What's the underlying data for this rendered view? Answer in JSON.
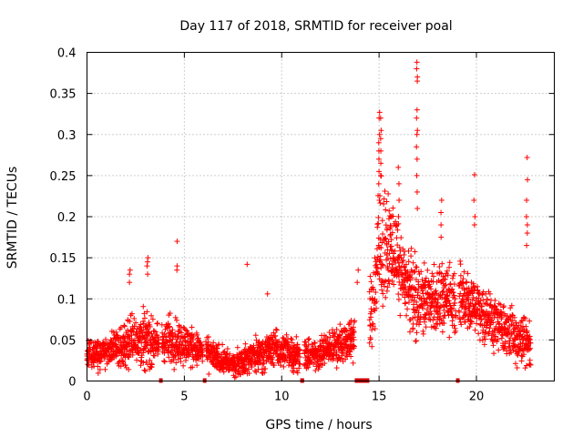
{
  "chart_data": {
    "type": "scatter",
    "title": "Day 117 of 2018, SRMTID for receiver poal",
    "xlabel": "GPS time / hours",
    "ylabel": "SRMTID / TECUs",
    "xlim": [
      0,
      24
    ],
    "ylim": [
      0,
      0.4
    ],
    "xticks": [
      0,
      5,
      10,
      15,
      20
    ],
    "xtick_labels": [
      "0",
      "5",
      "10",
      "15",
      "20"
    ],
    "yticks": [
      0,
      0.05,
      0.1,
      0.15,
      0.2,
      0.25,
      0.3,
      0.35,
      0.4
    ],
    "ytick_labels": [
      "0",
      "0.05",
      "0.1",
      "0.15",
      "0.2",
      "0.25",
      "0.3",
      "0.35",
      "0.4"
    ],
    "grid": true,
    "marker": "+",
    "color": "#ff0000",
    "gap_color": "#cc0000",
    "data_gaps": [
      [
        3.7,
        3.85
      ],
      [
        5.95,
        6.1
      ],
      [
        10.95,
        11.15
      ],
      [
        13.75,
        14.5
      ],
      [
        18.95,
        19.1
      ]
    ],
    "activity_profile": [
      {
        "t": 0.0,
        "center": 0.03,
        "spread": 0.025
      },
      {
        "t": 1.0,
        "center": 0.035,
        "spread": 0.03
      },
      {
        "t": 2.0,
        "center": 0.045,
        "spread": 0.035
      },
      {
        "t": 2.5,
        "center": 0.055,
        "spread": 0.045
      },
      {
        "t": 3.0,
        "center": 0.05,
        "spread": 0.05
      },
      {
        "t": 3.5,
        "center": 0.045,
        "spread": 0.035
      },
      {
        "t": 4.5,
        "center": 0.05,
        "spread": 0.045
      },
      {
        "t": 5.5,
        "center": 0.04,
        "spread": 0.03
      },
      {
        "t": 6.5,
        "center": 0.03,
        "spread": 0.025
      },
      {
        "t": 7.5,
        "center": 0.02,
        "spread": 0.02
      },
      {
        "t": 8.5,
        "center": 0.03,
        "spread": 0.03
      },
      {
        "t": 9.5,
        "center": 0.04,
        "spread": 0.03
      },
      {
        "t": 10.5,
        "center": 0.035,
        "spread": 0.03
      },
      {
        "t": 11.5,
        "center": 0.03,
        "spread": 0.025
      },
      {
        "t": 12.5,
        "center": 0.04,
        "spread": 0.03
      },
      {
        "t": 13.5,
        "center": 0.05,
        "spread": 0.035
      },
      {
        "t": 14.5,
        "center": 0.07,
        "spread": 0.06
      },
      {
        "t": 15.0,
        "center": 0.15,
        "spread": 0.12
      },
      {
        "t": 15.6,
        "center": 0.17,
        "spread": 0.07
      },
      {
        "t": 16.2,
        "center": 0.13,
        "spread": 0.06
      },
      {
        "t": 16.8,
        "center": 0.1,
        "spread": 0.07
      },
      {
        "t": 17.5,
        "center": 0.1,
        "spread": 0.06
      },
      {
        "t": 18.5,
        "center": 0.1,
        "spread": 0.06
      },
      {
        "t": 19.5,
        "center": 0.1,
        "spread": 0.06
      },
      {
        "t": 20.5,
        "center": 0.08,
        "spread": 0.05
      },
      {
        "t": 21.5,
        "center": 0.06,
        "spread": 0.045
      },
      {
        "t": 22.5,
        "center": 0.05,
        "spread": 0.045
      },
      {
        "t": 22.8,
        "center": 0.05,
        "spread": 0.04
      }
    ],
    "spikes": [
      {
        "t": 2.2,
        "values": [
          0.13,
          0.135,
          0.12
        ]
      },
      {
        "t": 3.1,
        "values": [
          0.15,
          0.145,
          0.14,
          0.13
        ]
      },
      {
        "t": 4.6,
        "values": [
          0.17,
          0.14,
          0.135
        ]
      },
      {
        "t": 8.2,
        "values": [
          0.142
        ]
      },
      {
        "t": 9.3,
        "values": [
          0.106
        ]
      },
      {
        "t": 13.9,
        "values": [
          0.135,
          0.12
        ]
      },
      {
        "t": 15.0,
        "values": [
          0.327,
          0.32,
          0.3,
          0.29,
          0.28,
          0.27,
          0.255,
          0.24,
          0.22
        ]
      },
      {
        "t": 15.1,
        "values": [
          0.32,
          0.305,
          0.295,
          0.28,
          0.265,
          0.25
        ]
      },
      {
        "t": 16.0,
        "values": [
          0.26,
          0.24,
          0.22,
          0.2
        ]
      },
      {
        "t": 16.95,
        "values": [
          0.388,
          0.38,
          0.37,
          0.365,
          0.33,
          0.32,
          0.305,
          0.3,
          0.285,
          0.27,
          0.25,
          0.23,
          0.21
        ]
      },
      {
        "t": 18.2,
        "values": [
          0.22,
          0.205,
          0.19,
          0.175
        ]
      },
      {
        "t": 19.9,
        "values": [
          0.251,
          0.22,
          0.2,
          0.19
        ]
      },
      {
        "t": 22.6,
        "values": [
          0.272,
          0.245,
          0.22,
          0.2,
          0.19,
          0.18,
          0.165
        ]
      }
    ],
    "sample_interval_hours": 0.012
  }
}
